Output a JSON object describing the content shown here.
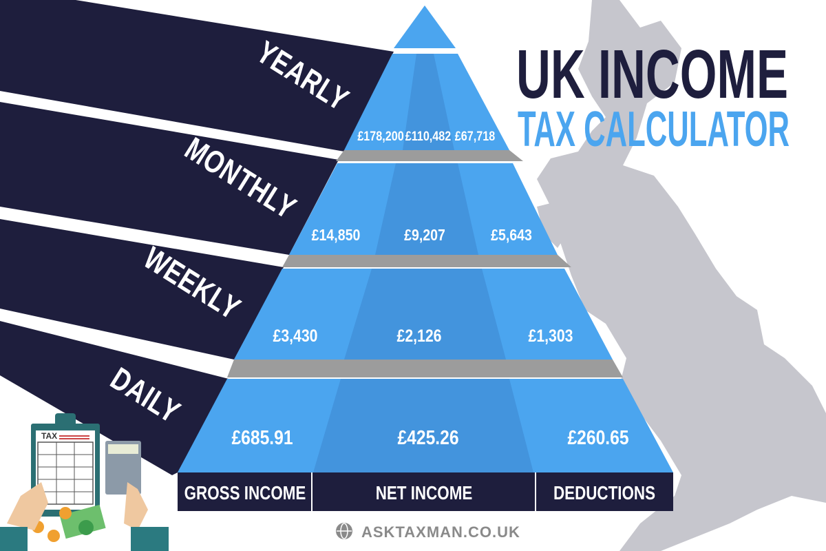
{
  "title": {
    "line1": "UK INCOME",
    "line2": "TAX CALCULATOR"
  },
  "colors": {
    "navy": "#1e1e3d",
    "blue": "#4ba5ef",
    "blue_dark": "#4394dd",
    "shelf": "#9c9c9c",
    "map": "#c6c6cd"
  },
  "columns": [
    "GROSS INCOME",
    "NET INCOME",
    "DEDUCTIONS"
  ],
  "tiers": [
    {
      "period": "YEARLY",
      "gross": "£178,200",
      "net": "£110,482",
      "deductions": "£67,718"
    },
    {
      "period": "MONTHLY",
      "gross": "£14,850",
      "net": "£9,207",
      "deductions": "£5,643"
    },
    {
      "period": "WEEKLY",
      "gross": "£3,430",
      "net": "£2,126",
      "deductions": "£1,303"
    },
    {
      "period": "DAILY",
      "gross": "£685.91",
      "net": "£425.26",
      "deductions": "£260.65"
    }
  ],
  "illustration": {
    "clipboard_label": "TAX",
    "icon": "tax-calculator-illustration"
  },
  "footer": {
    "website": "ASKTAXMAN.CO.UK",
    "icon": "globe-icon"
  }
}
